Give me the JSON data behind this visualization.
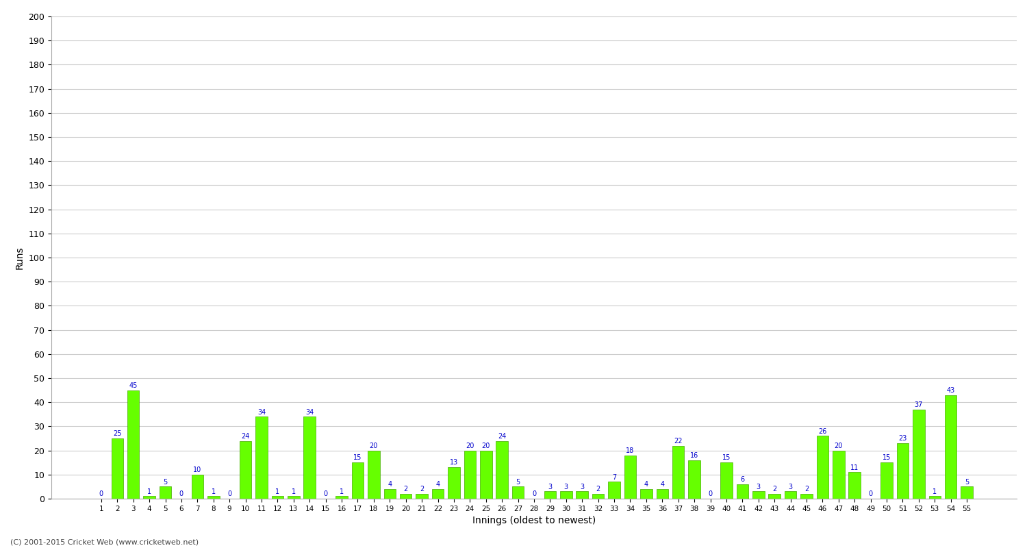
{
  "innings": [
    1,
    2,
    3,
    4,
    5,
    6,
    7,
    8,
    9,
    10,
    11,
    12,
    13,
    14,
    15,
    16,
    17,
    18,
    19,
    20,
    21,
    22,
    23,
    24,
    25,
    26,
    27,
    28,
    29,
    30,
    31,
    32,
    33,
    34,
    35,
    36,
    37,
    38,
    39,
    40,
    41,
    42,
    43,
    44,
    45,
    46,
    47,
    48,
    49,
    50,
    51,
    52,
    53,
    54,
    55
  ],
  "runs": [
    0,
    25,
    45,
    1,
    5,
    0,
    10,
    1,
    0,
    24,
    34,
    1,
    1,
    34,
    0,
    1,
    15,
    20,
    4,
    2,
    2,
    4,
    13,
    20,
    20,
    24,
    5,
    0,
    3,
    3,
    3,
    2,
    7,
    18,
    4,
    4,
    22,
    16,
    0,
    15,
    6,
    3,
    2,
    3,
    2,
    26,
    20,
    11,
    0,
    15,
    23,
    37,
    1,
    43,
    5
  ],
  "xlabel": "Innings (oldest to newest)",
  "ylabel": "Runs",
  "ylim": [
    0,
    200
  ],
  "yticks": [
    0,
    10,
    20,
    30,
    40,
    50,
    60,
    70,
    80,
    90,
    100,
    110,
    120,
    130,
    140,
    150,
    160,
    170,
    180,
    190,
    200
  ],
  "bar_color": "#66ff00",
  "bar_edge_color": "#44aa00",
  "label_color": "#0000cc",
  "background_color": "#ffffff",
  "grid_color": "#cccccc",
  "axis_label_color": "#000000",
  "tick_label_color": "#000000",
  "copyright": "(C) 2001-2015 Cricket Web (www.cricketweb.net)"
}
